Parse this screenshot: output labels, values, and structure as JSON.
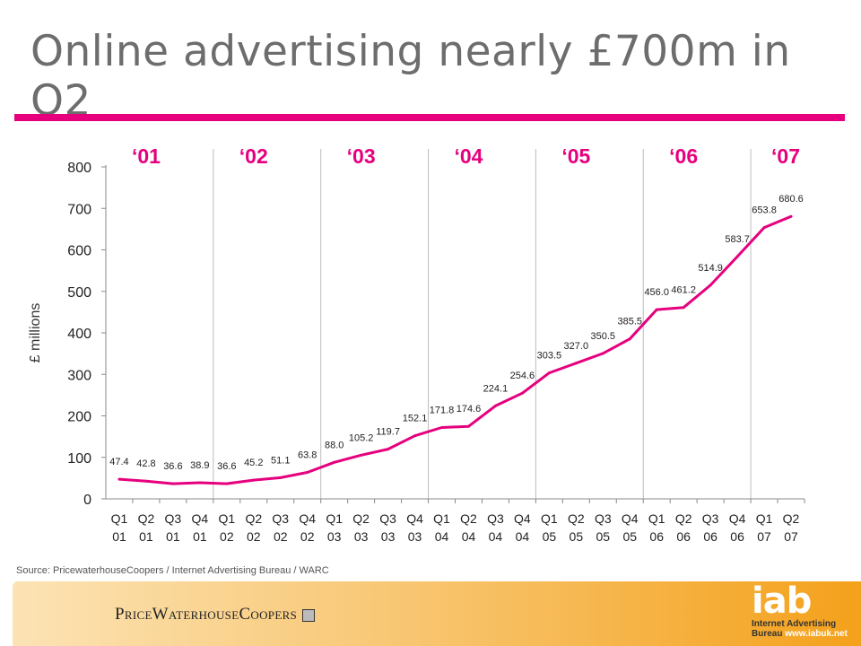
{
  "slide": {
    "title": "Online advertising nearly £700m in Q2",
    "source": "Source: PricewaterhouseCoopers / Internet Advertising Bureau / WARC",
    "accent_color": "#e6007e",
    "footer": {
      "pwc_logo": "PriceWaterhouseCoopers",
      "iab_logo": "iab",
      "iab_line1": "Internet Advertising",
      "iab_line2": "Bureau",
      "iab_url": "www.iabuk.net"
    }
  },
  "chart_data": {
    "type": "line",
    "title": "",
    "xlabel": "",
    "ylabel": "£ millions",
    "ylim": [
      0,
      800
    ],
    "yticks": [
      0,
      100,
      200,
      300,
      400,
      500,
      600,
      700,
      800
    ],
    "grid": false,
    "line_color": "#e6007e",
    "year_labels": [
      "‘01",
      "‘02",
      "‘03",
      "‘04",
      "‘05",
      "‘06",
      "‘07"
    ],
    "categories": [
      [
        "Q1",
        "01"
      ],
      [
        "Q2",
        "01"
      ],
      [
        "Q3",
        "01"
      ],
      [
        "Q4",
        "01"
      ],
      [
        "Q1",
        "02"
      ],
      [
        "Q2",
        "02"
      ],
      [
        "Q3",
        "02"
      ],
      [
        "Q4",
        "02"
      ],
      [
        "Q1",
        "03"
      ],
      [
        "Q2",
        "03"
      ],
      [
        "Q3",
        "03"
      ],
      [
        "Q4",
        "03"
      ],
      [
        "Q1",
        "04"
      ],
      [
        "Q2",
        "04"
      ],
      [
        "Q3",
        "04"
      ],
      [
        "Q4",
        "04"
      ],
      [
        "Q1",
        "05"
      ],
      [
        "Q2",
        "05"
      ],
      [
        "Q3",
        "05"
      ],
      [
        "Q4",
        "05"
      ],
      [
        "Q1",
        "06"
      ],
      [
        "Q2",
        "06"
      ],
      [
        "Q3",
        "06"
      ],
      [
        "Q4",
        "06"
      ],
      [
        "Q1",
        "07"
      ],
      [
        "Q2",
        "07"
      ]
    ],
    "series": [
      {
        "values": [
          47.4,
          42.8,
          36.6,
          38.9,
          36.6,
          45.2,
          51.1,
          63.8,
          88.0,
          105.2,
          119.7,
          152.1,
          171.8,
          174.6,
          224.1,
          254.6,
          303.5,
          327.0,
          350.5,
          385.5,
          456.0,
          461.2,
          514.9,
          583.7,
          653.8,
          680.6
        ],
        "labels": [
          "47.4",
          "42.8",
          "36.6",
          "38.9",
          "36.6",
          "45.2",
          "51.1",
          "63.8",
          "88.0",
          "105.2",
          "119.7",
          "152.1",
          "171.8",
          "174.6",
          "224.1",
          "254.6",
          "303.5",
          "327.0",
          "350.5",
          "385.5",
          "456.0",
          "461.2",
          "514.9",
          "583.7",
          "653.8",
          "680.6"
        ]
      }
    ]
  }
}
